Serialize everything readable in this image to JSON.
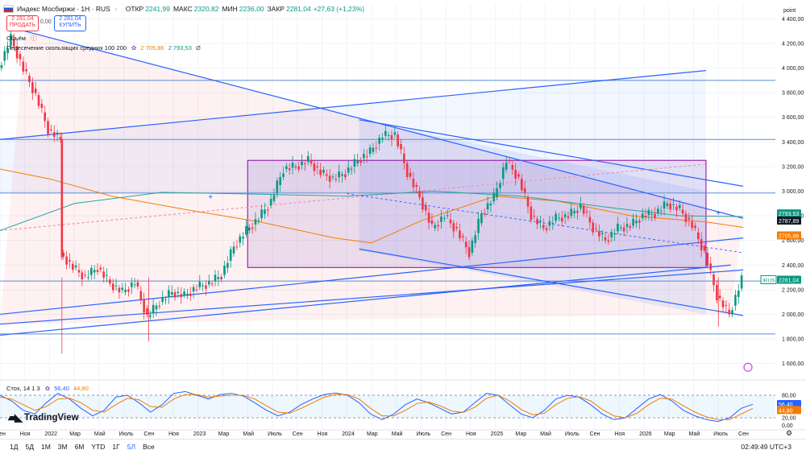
{
  "header": {
    "symbol": "Индекс Мосбиржи · 1Н · RUS",
    "open_label": "ОТКР",
    "open": "2241,99",
    "high_label": "МАКС",
    "high": "2320,82",
    "low_label": "МИН",
    "low": "2236,00",
    "close_label": "ЗАКР",
    "close": "2281,04",
    "change": "+27,63 (+1,23%)"
  },
  "trade": {
    "sell_price": "2 281,04",
    "sell_label": "ПРОДАТЬ",
    "spread": "0,00",
    "buy_price": "2 281,04",
    "buy_label": "КУПИТЬ"
  },
  "indicators": {
    "volume_label": "Объём",
    "ma_label": "Пересечение скользящих средних 100 200",
    "ma_fast": "2 705,86",
    "ma_slow": "2 793,53",
    "stoch_label": "Стох, 14 1 3",
    "stoch_k": "56,40",
    "stoch_d": "44,80"
  },
  "brand": {
    "logo_text": "TradingView"
  },
  "bottom_bar": {
    "timeframes": [
      "1Д",
      "5Д",
      "1М",
      "3М",
      "6М",
      "YTD",
      "1Г",
      "5Л",
      "Все"
    ],
    "selected": "5Л",
    "clock": "02:49:49 UTC+3"
  },
  "chart_data": [
    {
      "type": "candlestick",
      "title": "Индекс Мосбиржи · 1Н · RUS",
      "unit_label": "point",
      "y_ticks": [
        1600,
        1800,
        2000,
        2200,
        2400,
        2600,
        2800,
        3000,
        3200,
        3400,
        3600,
        3800,
        4000,
        4200,
        4400
      ],
      "y_tick_labels": [
        "1 600,00",
        "1 800,00",
        "2 000,00",
        "2 200,00",
        "2 400,00",
        "2 600,00",
        "2 800,00",
        "3 000,00",
        "3 200,00",
        "3 400,00",
        "3 600,00",
        "3 800,00",
        "4 000,00",
        "4 200,00",
        "4 400,00"
      ],
      "ylim": [
        1480,
        4520
      ],
      "x_tick_labels": [
        "Сен",
        "Ноя",
        "2022",
        "Мар",
        "Май",
        "Июль",
        "Сен",
        "Ноя",
        "2023",
        "Мар",
        "Май",
        "Июль",
        "Сен",
        "Ноя",
        "2024",
        "Мар",
        "Май",
        "Июль",
        "Сен",
        "Ноя",
        "2025",
        "Мар",
        "Май",
        "Июль",
        "Сен",
        "Ноя",
        "2026",
        "Мар",
        "Май",
        "Июль",
        "Сен"
      ],
      "x_tick_months": [
        "2021-09",
        "2021-11",
        "2022-01",
        "2022-03",
        "2022-05",
        "2022-07",
        "2022-09",
        "2022-11",
        "2023-01",
        "2023-03",
        "2023-05",
        "2023-07",
        "2023-09",
        "2023-11",
        "2024-01",
        "2024-03",
        "2024-05",
        "2024-07",
        "2024-09",
        "2024-11",
        "2025-01",
        "2025-03",
        "2025-05",
        "2025-07",
        "2025-09",
        "2025-11",
        "2026-01",
        "2026-03",
        "2026-05",
        "2026-07",
        "2026-09"
      ],
      "path": [
        [
          "2021-09",
          4000
        ],
        [
          "2021-10",
          4240
        ],
        [
          "2021-11",
          3990
        ],
        [
          "2021-12",
          3780
        ],
        [
          "2022-01",
          3500
        ],
        [
          "2022-02",
          3420
        ],
        [
          "2022-02",
          2500
        ],
        [
          "2022-03",
          2380
        ],
        [
          "2022-04",
          2300
        ],
        [
          "2022-05",
          2380
        ],
        [
          "2022-06",
          2250
        ],
        [
          "2022-07",
          2180
        ],
        [
          "2022-08",
          2260
        ],
        [
          "2022-09",
          1980
        ],
        [
          "2022-10",
          2100
        ],
        [
          "2022-11",
          2180
        ],
        [
          "2022-12",
          2150
        ],
        [
          "2023-01",
          2220
        ],
        [
          "2023-02",
          2250
        ],
        [
          "2023-03",
          2320
        ],
        [
          "2023-04",
          2550
        ],
        [
          "2023-05",
          2680
        ],
        [
          "2023-06",
          2780
        ],
        [
          "2023-07",
          2920
        ],
        [
          "2023-08",
          3180
        ],
        [
          "2023-09",
          3200
        ],
        [
          "2023-10",
          3250
        ],
        [
          "2023-11",
          3150
        ],
        [
          "2023-12",
          3100
        ],
        [
          "2024-01",
          3150
        ],
        [
          "2024-02",
          3250
        ],
        [
          "2024-03",
          3320
        ],
        [
          "2024-04",
          3450
        ],
        [
          "2024-05",
          3460
        ],
        [
          "2024-06",
          3150
        ],
        [
          "2024-07",
          2950
        ],
        [
          "2024-08",
          2700
        ],
        [
          "2024-09",
          2800
        ],
        [
          "2024-10",
          2680
        ],
        [
          "2024-11",
          2500
        ],
        [
          "2024-12",
          2820
        ],
        [
          "2025-01",
          2950
        ],
        [
          "2025-02",
          3250
        ],
        [
          "2025-03",
          3100
        ],
        [
          "2025-04",
          2800
        ],
        [
          "2025-05",
          2700
        ],
        [
          "2025-06",
          2780
        ],
        [
          "2025-07",
          2800
        ],
        [
          "2025-08",
          2880
        ],
        [
          "2025-09",
          2700
        ],
        [
          "2025-10",
          2600
        ],
        [
          "2025-11",
          2700
        ],
        [
          "2025-12",
          2720
        ],
        [
          "2026-01",
          2800
        ],
        [
          "2026-02",
          2820
        ],
        [
          "2026-03",
          2900
        ],
        [
          "2026-04",
          2850
        ],
        [
          "2026-05",
          2720
        ],
        [
          "2026-06",
          2500
        ],
        [
          "2026-07",
          2150
        ],
        [
          "2026-08",
          2000
        ],
        [
          "2026-09",
          2280
        ]
      ],
      "spikes": [
        [
          "2022-02",
          1680
        ],
        [
          "2022-09",
          1780
        ],
        [
          "2026-07",
          1900
        ]
      ],
      "price_labels": [
        {
          "value": 2793.53,
          "text": "2793,53",
          "color": "#089981"
        },
        {
          "value": 2787.89,
          "text": "2787,89",
          "color": "#131722"
        },
        {
          "value": 2705.86,
          "text": "2705,86",
          "color": "#f57c00"
        },
        {
          "value": 2281.04,
          "text": "2281,04",
          "color": "#089981",
          "tag": "IRUS"
        }
      ],
      "horizontal_levels": [
        3900,
        3420,
        2985,
        2270,
        1840
      ],
      "colors": {
        "up": "#089981",
        "down": "#f23645",
        "ma_fast": "#f57c00",
        "ma_slow": "#26a69a",
        "trendline": "#2962ff"
      }
    },
    {
      "type": "line",
      "name": "Стох, 14 1 3",
      "series": [
        {
          "name": "%K",
          "values": [
            80,
            65,
            40,
            30,
            60,
            85,
            70,
            45,
            25,
            40,
            75,
            80,
            60,
            35,
            55,
            85,
            90,
            80,
            70,
            82,
            85,
            78,
            60,
            40,
            25,
            35,
            55,
            70,
            82,
            86,
            80,
            60,
            30,
            15,
            30,
            55,
            70,
            60,
            45,
            30,
            35,
            60,
            85,
            80,
            55,
            30,
            20,
            40,
            70,
            80,
            75,
            55,
            30,
            15,
            20,
            45,
            70,
            82,
            65,
            40,
            25,
            15,
            10,
            20,
            45,
            56
          ]
        },
        {
          "name": "%D",
          "values": [
            75,
            70,
            55,
            40,
            50,
            70,
            72,
            60,
            40,
            35,
            55,
            72,
            68,
            50,
            48,
            70,
            82,
            82,
            75,
            78,
            80,
            80,
            70,
            52,
            35,
            32,
            45,
            60,
            75,
            82,
            82,
            70,
            45,
            25,
            25,
            40,
            58,
            62,
            52,
            38,
            34,
            48,
            72,
            80,
            65,
            42,
            28,
            32,
            55,
            72,
            76,
            65,
            42,
            25,
            20,
            32,
            55,
            72,
            70,
            52,
            35,
            22,
            15,
            15,
            30,
            44.8
          ]
        }
      ],
      "y_ticks": [
        0,
        20,
        80
      ],
      "y_tick_labels": [
        "0,00",
        "20,00",
        "80,00"
      ],
      "ylim": [
        -8,
        108
      ],
      "bands": [
        20,
        80
      ],
      "last_k": 56.4,
      "last_d": 44.8
    }
  ]
}
